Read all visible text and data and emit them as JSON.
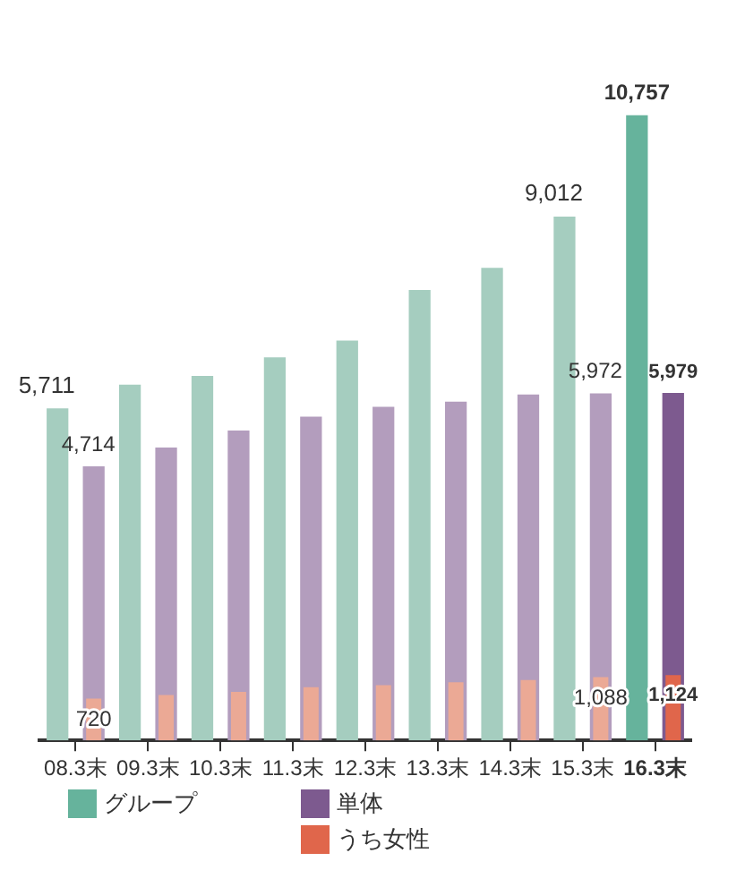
{
  "chart_data": {
    "type": "bar",
    "categories": [
      "08.3末",
      "09.3末",
      "10.3末",
      "11.3末",
      "12.3末",
      "13.3末",
      "14.3末",
      "15.3末",
      "16.3末"
    ],
    "series": [
      {
        "name": "グループ",
        "color": "#66b39c",
        "colors": [
          "#a5cdbf",
          "#a5cdbf",
          "#a5cdbf",
          "#a5cdbf",
          "#a5cdbf",
          "#a5cdbf",
          "#a5cdbf",
          "#a5cdbf",
          "#66b39c"
        ],
        "values": [
          5711,
          6120,
          6270,
          6590,
          6880,
          7750,
          8130,
          9012,
          10757
        ],
        "value_labels": [
          "5,711",
          null,
          null,
          null,
          null,
          null,
          null,
          "9,012",
          "10,757"
        ]
      },
      {
        "name": "単体",
        "color": "#7d5a8f",
        "colors": [
          "#b39dbd",
          "#b39dbd",
          "#b39dbd",
          "#b39dbd",
          "#b39dbd",
          "#b39dbd",
          "#b39dbd",
          "#b39dbd",
          "#7d5a8f"
        ],
        "values": [
          4714,
          5040,
          5330,
          5570,
          5740,
          5830,
          5950,
          5972,
          5979
        ],
        "value_labels": [
          "4,714",
          null,
          null,
          null,
          null,
          null,
          null,
          "5,972",
          "5,979"
        ]
      },
      {
        "name": "うち女性",
        "color": "#e0664b",
        "colors": [
          "#eba995",
          "#eba995",
          "#eba995",
          "#eba995",
          "#eba995",
          "#eba995",
          "#eba995",
          "#eba995",
          "#e0664b"
        ],
        "values": [
          720,
          780,
          835,
          915,
          950,
          1000,
          1040,
          1088,
          1124
        ],
        "value_labels": [
          "720",
          null,
          null,
          null,
          null,
          null,
          null,
          "1,088",
          "1,124"
        ]
      }
    ],
    "legend": "bottom",
    "grid": false
  }
}
